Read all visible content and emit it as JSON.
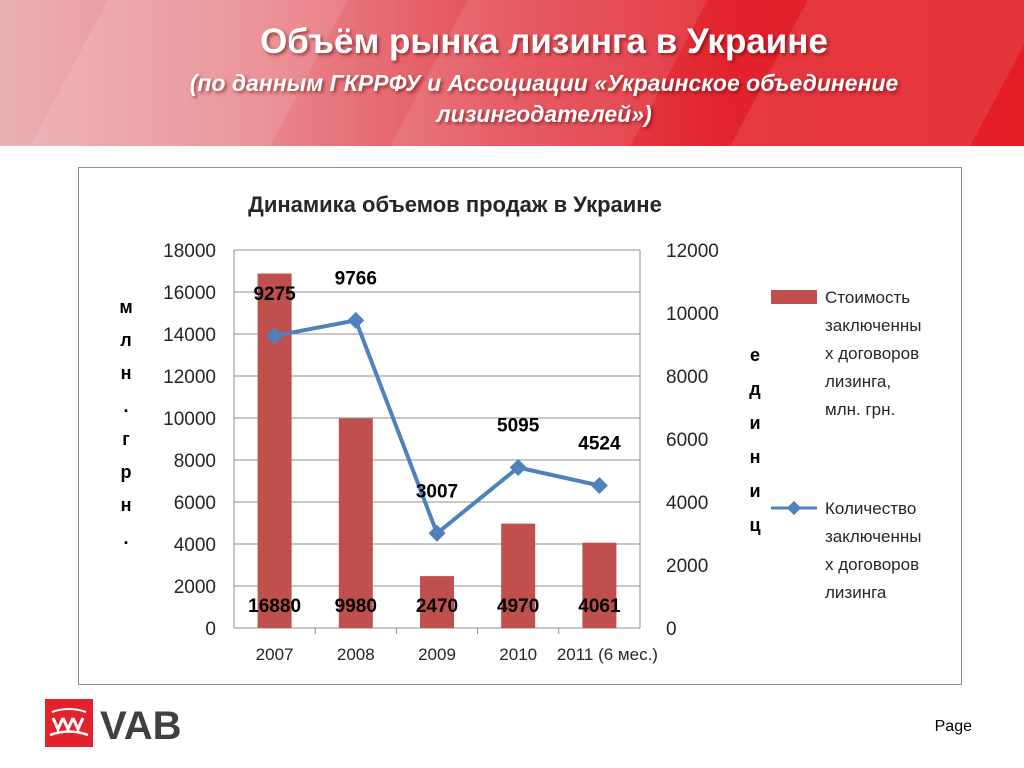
{
  "slide": {
    "title": "Объём рынка лизинга в Украине",
    "subtitle": "(по данным ГКРРФУ и Ассоциации «Украинское объединение лизингодателей»)",
    "footer_page": "Page",
    "logo_text": "VAB"
  },
  "colors": {
    "bar": "#c0504d",
    "line": "#4f81bd",
    "banner_start": "#eab0b3",
    "banner_end": "#e41d25"
  },
  "chart_data": {
    "type": "bar",
    "title": "Динамика объемов продаж в Украине",
    "categories": [
      "2007",
      "2008",
      "2009",
      "2010",
      "2011 (6 мес.)"
    ],
    "series": [
      {
        "name": "Стоимость заключенных договоров лизинга, млн. грн.",
        "type": "bar",
        "axis": "left",
        "values": [
          16880,
          9980,
          2470,
          4970,
          4061
        ]
      },
      {
        "name": "Количество заключенных договоров лизинга",
        "type": "line",
        "axis": "right",
        "values": [
          9275,
          9766,
          3007,
          5095,
          4524
        ]
      }
    ],
    "ylabel": "млн. грн.",
    "y2label": "единиц",
    "ylim": [
      0,
      18000
    ],
    "y2lim": [
      0,
      12000
    ],
    "yticks": [
      "0",
      "2000",
      "4000",
      "6000",
      "8000",
      "10000",
      "12000",
      "14000",
      "16000",
      "18000"
    ],
    "y2ticks": [
      "0",
      "2000",
      "4000",
      "6000",
      "8000",
      "10000",
      "12000"
    ],
    "legend_lines": [
      [
        "Стоимость",
        "заключенны",
        "х договоров",
        "лизинга,",
        "млн. грн."
      ],
      [
        "Количество",
        "заключенны",
        "х договоров",
        "лизинга"
      ]
    ],
    "grid": true,
    "legend_position": "right"
  }
}
